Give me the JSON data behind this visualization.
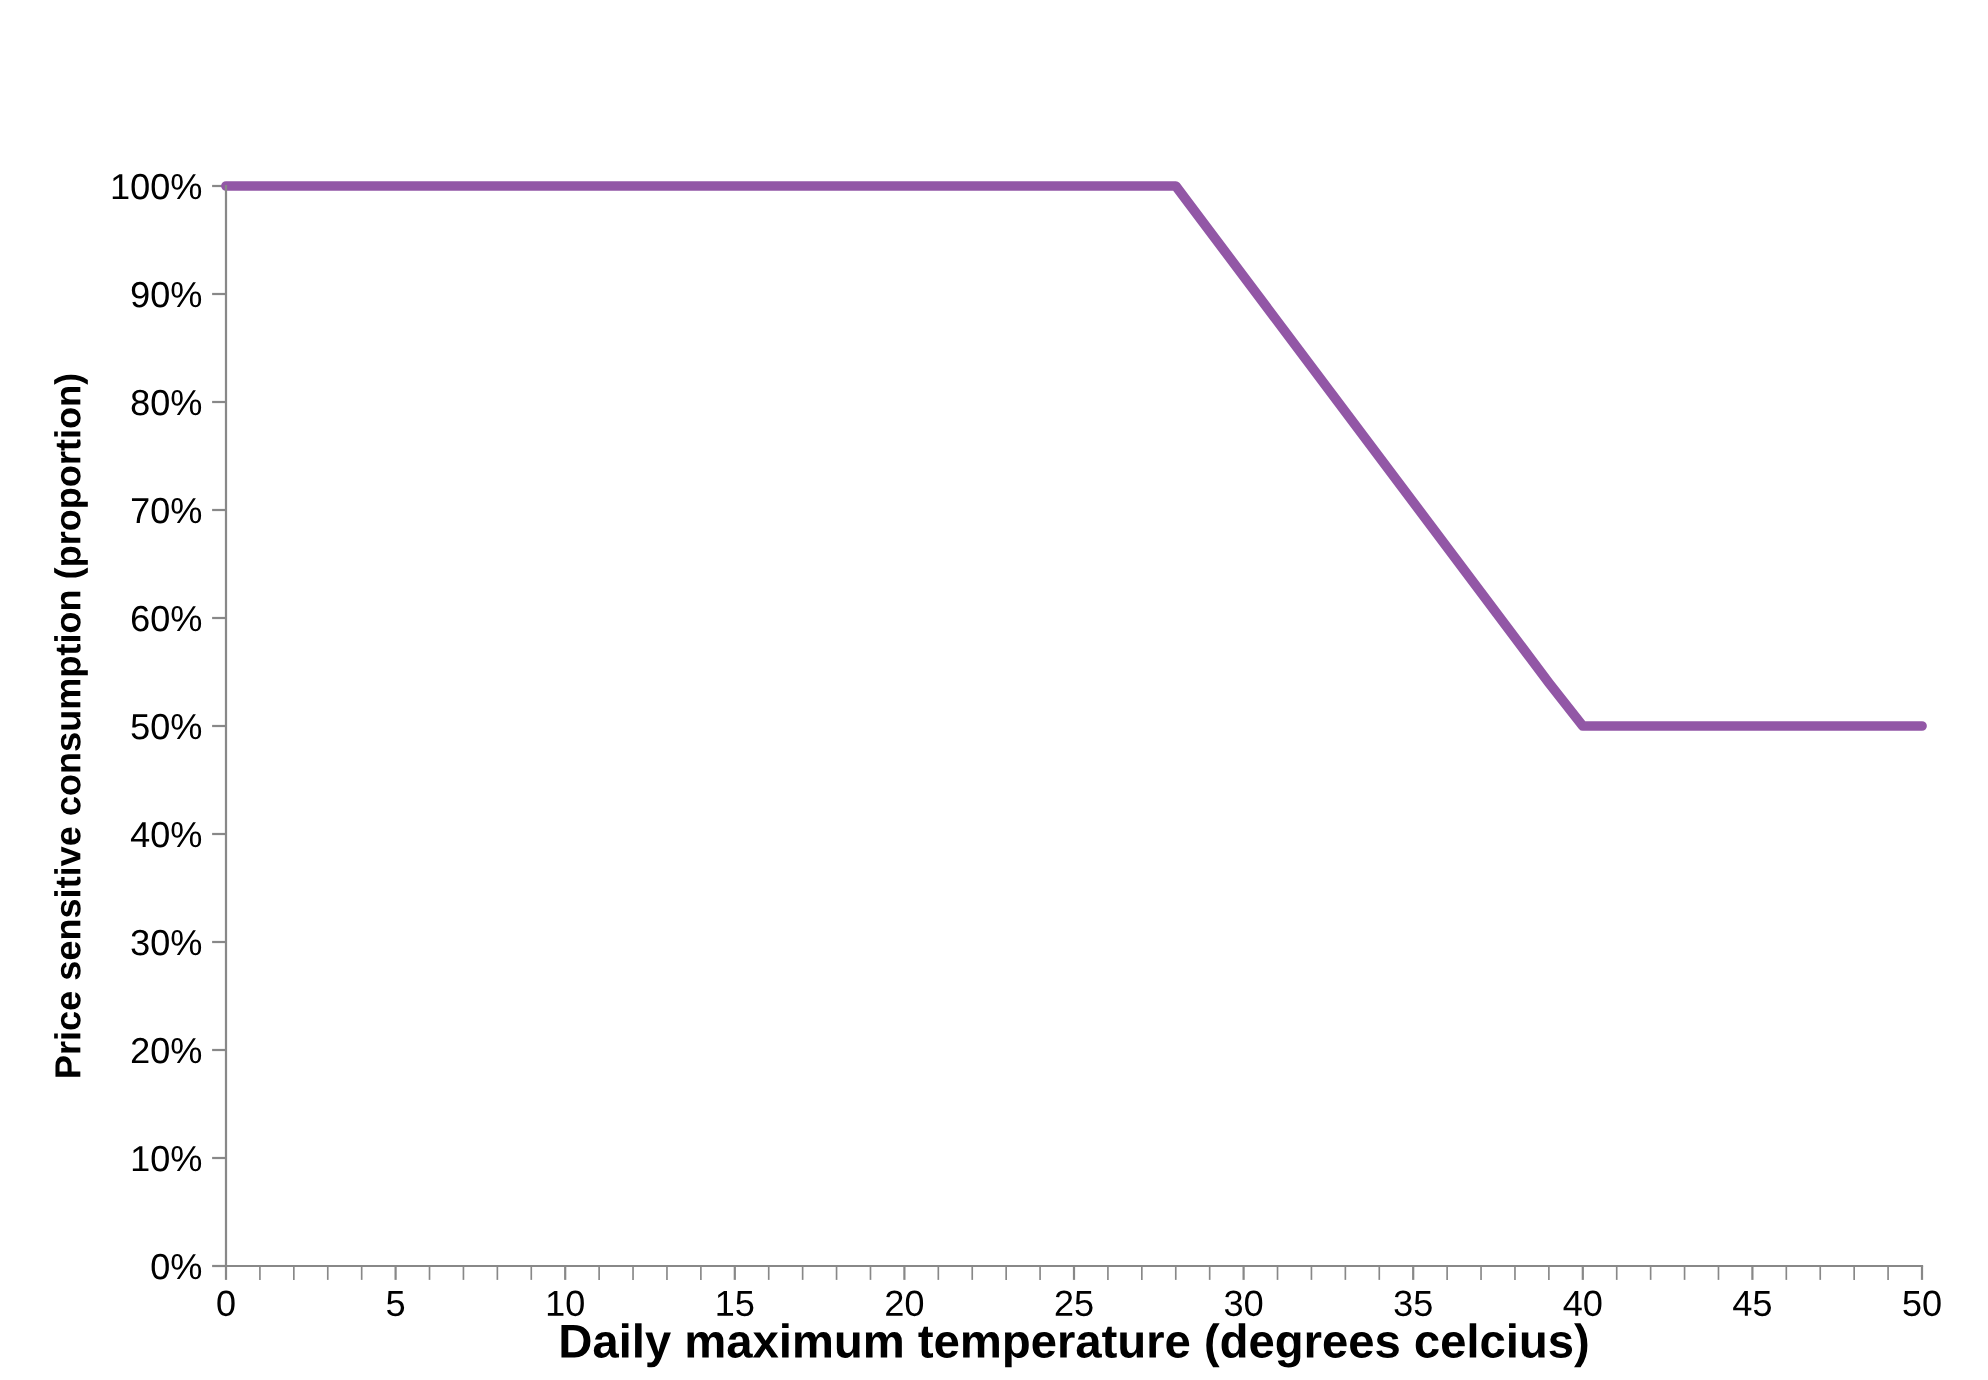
{
  "chart_data": {
    "type": "line",
    "xlabel": "Daily maximum temperature (degrees celcius)",
    "ylabel": "Price sensitive consumption (proportion)",
    "series": [
      {
        "color": "#9257a6",
        "x": [
          0,
          28,
          39,
          40,
          50
        ],
        "values": [
          100,
          100,
          54,
          50,
          50
        ]
      }
    ],
    "xlim": [
      0,
      50
    ],
    "xticks": [
      0,
      5,
      10,
      15,
      20,
      25,
      30,
      35,
      40,
      45,
      50
    ],
    "ylim": [
      0,
      100
    ],
    "yticks": [
      {
        "value": 0,
        "label": "0%"
      },
      {
        "value": 10,
        "label": "10%"
      },
      {
        "value": 20,
        "label": "20%"
      },
      {
        "value": 30,
        "label": "30%"
      },
      {
        "value": 40,
        "label": "40%"
      },
      {
        "value": 50,
        "label": "50%"
      },
      {
        "value": 60,
        "label": "60%"
      },
      {
        "value": 70,
        "label": "70%"
      },
      {
        "value": 80,
        "label": "80%"
      },
      {
        "value": 90,
        "label": "90%"
      },
      {
        "value": 100,
        "label": "100%"
      }
    ],
    "grid": false,
    "legend": false,
    "marker": "none",
    "line_style": "solid"
  }
}
